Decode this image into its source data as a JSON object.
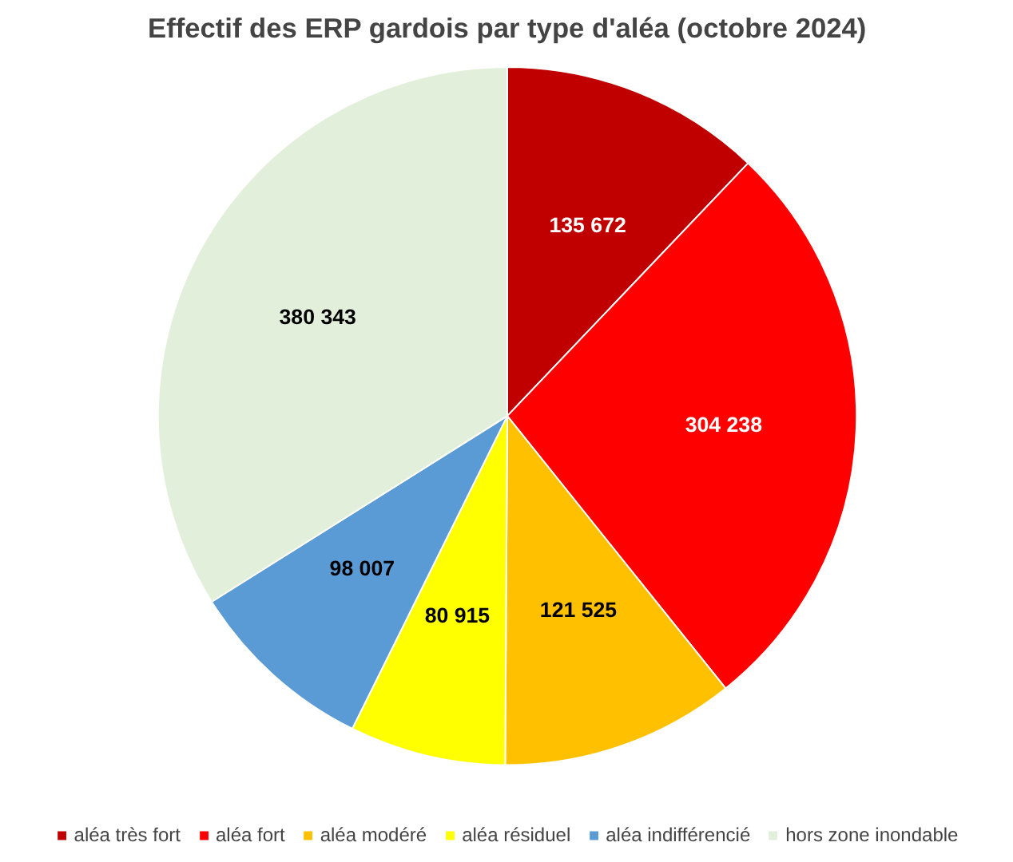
{
  "chart_data": {
    "type": "pie",
    "title": "Effectif des ERP gardois par type d'aléa (octobre 2024)",
    "categories": [
      "aléa très fort",
      "aléa fort",
      "aléa modéré",
      "aléa résiduel",
      "aléa indifférencié",
      "hors zone inondable"
    ],
    "values": [
      135672,
      304238,
      121525,
      80915,
      98007,
      380343
    ],
    "colors": [
      "#c00000",
      "#ff0000",
      "#ffc000",
      "#ffff00",
      "#5b9bd5",
      "#e2efda"
    ],
    "value_labels": [
      "135 672",
      "304 238",
      "121 525",
      "80 915",
      "98 007",
      "380 343"
    ],
    "legend": "bottom"
  }
}
